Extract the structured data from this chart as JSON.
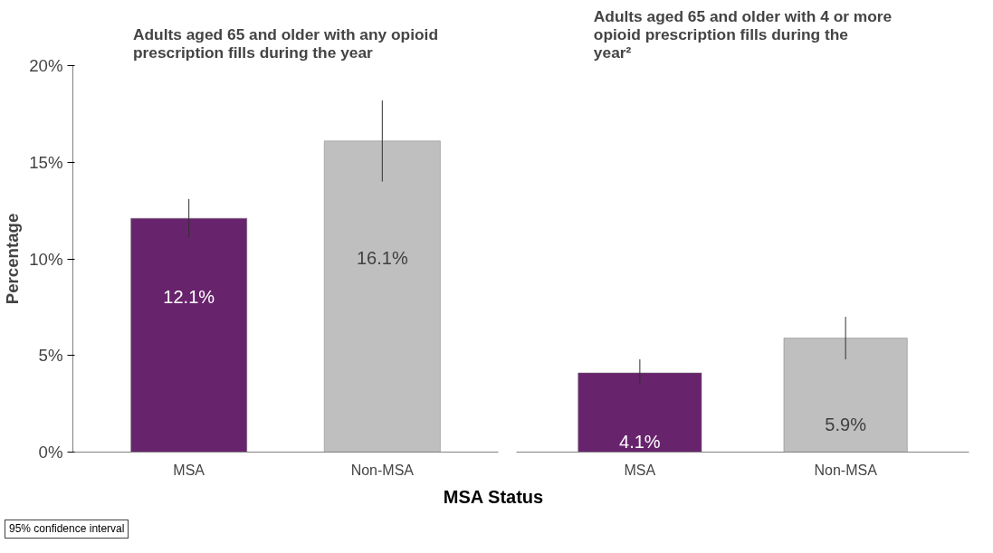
{
  "chart_data": [
    {
      "type": "bar",
      "title": "Adults aged 65 and older with any opioid prescription fills during the year",
      "ylabel": "Percentage",
      "xlabel": "MSA Status",
      "categories": [
        "MSA",
        "Non-MSA"
      ],
      "values": [
        12.1,
        16.1
      ],
      "colors": [
        "#68236d",
        "#bfbfbf"
      ],
      "errors": [
        [
          11.1,
          13.1
        ],
        [
          14.0,
          18.2
        ]
      ],
      "value_labels": [
        "12.1%",
        "16.1%"
      ],
      "ylim": [
        0,
        20
      ],
      "yticks": [
        {
          "value": 0,
          "label": "0%"
        },
        {
          "value": 5,
          "label": "5%"
        },
        {
          "value": 10,
          "label": "10%"
        },
        {
          "value": 15,
          "label": "15%"
        },
        {
          "value": 20,
          "label": "20%"
        }
      ],
      "grid": false,
      "annotations": [
        "95% confidence interval"
      ]
    },
    {
      "type": "bar",
      "title": "Adults aged 65 and older with 4 or more opioid prescription fills during the year²",
      "categories": [
        "MSA",
        "Non-MSA"
      ],
      "values": [
        4.1,
        5.9
      ],
      "colors": [
        "#68236d",
        "#bfbfbf"
      ],
      "errors": [
        [
          3.5,
          4.8
        ],
        [
          4.8,
          7.0
        ]
      ],
      "value_labels": [
        "4.1%",
        "5.9%"
      ],
      "ylim": [
        0,
        20
      ],
      "grid": false,
      "tick_labels": "x"
    }
  ]
}
